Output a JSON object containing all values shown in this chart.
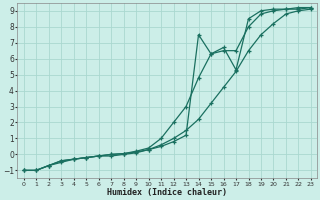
{
  "xlabel": "Humidex (Indice chaleur)",
  "bg_color": "#cceee8",
  "line_color": "#1a7060",
  "grid_color": "#aad8d0",
  "xlim": [
    -0.5,
    23.5
  ],
  "ylim": [
    -1.5,
    9.5
  ],
  "xticks": [
    0,
    1,
    2,
    3,
    4,
    5,
    6,
    7,
    8,
    9,
    10,
    11,
    12,
    13,
    14,
    15,
    16,
    17,
    18,
    19,
    20,
    21,
    22,
    23
  ],
  "yticks": [
    -1,
    0,
    1,
    2,
    3,
    4,
    5,
    6,
    7,
    8,
    9
  ],
  "line1_x": [
    0,
    1,
    2,
    3,
    4,
    5,
    6,
    7,
    8,
    9,
    10,
    11,
    12,
    13,
    14,
    15,
    16,
    17,
    18,
    19,
    20,
    21,
    22,
    23
  ],
  "line1_y": [
    -1,
    -1,
    -0.7,
    -0.5,
    -0.3,
    -0.2,
    -0.1,
    -0.1,
    0.0,
    0.1,
    0.3,
    0.6,
    1.0,
    1.5,
    2.2,
    3.2,
    4.2,
    5.2,
    6.5,
    7.5,
    8.2,
    8.8,
    9.0,
    9.1
  ],
  "line2_x": [
    0,
    1,
    2,
    3,
    4,
    5,
    6,
    7,
    8,
    9,
    10,
    11,
    12,
    13,
    14,
    15,
    16,
    17,
    18,
    19,
    20,
    21,
    22,
    23
  ],
  "line2_y": [
    -1,
    -1,
    -0.7,
    -0.4,
    -0.3,
    -0.2,
    -0.1,
    0.0,
    0.05,
    0.2,
    0.4,
    1.0,
    2.0,
    3.0,
    4.8,
    6.3,
    6.5,
    6.5,
    8.0,
    8.8,
    9.0,
    9.1,
    9.1,
    9.2
  ],
  "line3_x": [
    0,
    1,
    2,
    3,
    4,
    5,
    6,
    7,
    8,
    9,
    10,
    11,
    12,
    13,
    14,
    15,
    16,
    17,
    18,
    19,
    20,
    21,
    22,
    23
  ],
  "line3_y": [
    -1,
    -1,
    -0.7,
    -0.4,
    -0.3,
    -0.2,
    -0.1,
    0.0,
    0.05,
    0.15,
    0.3,
    0.5,
    0.8,
    1.2,
    7.5,
    6.3,
    6.7,
    5.3,
    8.5,
    9.0,
    9.1,
    9.1,
    9.2,
    9.2
  ]
}
